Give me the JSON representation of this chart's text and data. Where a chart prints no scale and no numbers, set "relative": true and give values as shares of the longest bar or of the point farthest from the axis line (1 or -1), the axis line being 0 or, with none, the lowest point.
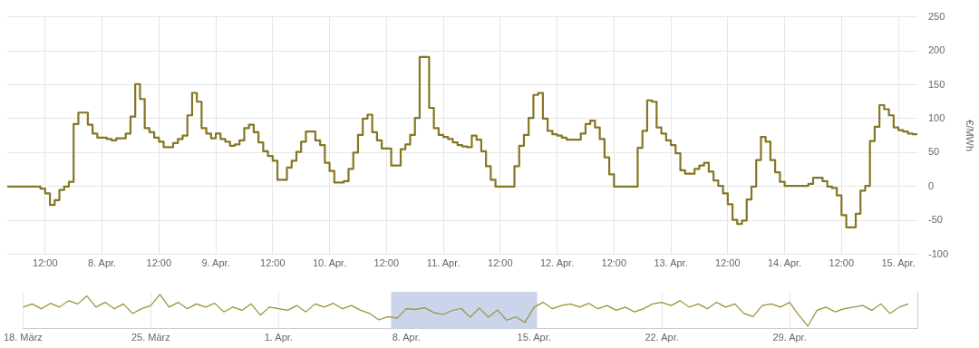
{
  "chart_data": [
    {
      "type": "step",
      "ylabel": "€/MWh",
      "grid": true,
      "legend": false,
      "marker": "none",
      "xlim": [
        "--04-07T04:00",
        "--04-15T04:00"
      ],
      "xticks": [
        {
          "value": "--04-07T12:00",
          "label": "12:00"
        },
        {
          "value": "--04-08",
          "label": "8. Apr."
        },
        {
          "value": "--04-08T12:00",
          "label": "12:00"
        },
        {
          "value": "--04-09",
          "label": "9. Apr."
        },
        {
          "value": "--04-09T12:00",
          "label": "12:00"
        },
        {
          "value": "--04-10",
          "label": "10. Apr."
        },
        {
          "value": "--04-10T12:00",
          "label": "12:00"
        },
        {
          "value": "--04-11",
          "label": "11. Apr."
        },
        {
          "value": "--04-11T12:00",
          "label": "12:00"
        },
        {
          "value": "--04-12",
          "label": "12. Apr."
        },
        {
          "value": "--04-12T12:00",
          "label": "12:00"
        },
        {
          "value": "--04-13",
          "label": "13. Apr."
        },
        {
          "value": "--04-13T12:00",
          "label": "12:00"
        },
        {
          "value": "--04-14",
          "label": "14. Apr."
        },
        {
          "value": "--04-14T12:00",
          "label": "12:00"
        },
        {
          "value": "--04-15",
          "label": "15. Apr."
        }
      ],
      "ylim": [
        -100,
        250
      ],
      "yticks": [
        -100,
        -50,
        0,
        50,
        100,
        150,
        200,
        250
      ],
      "series": [
        {
          "color": "#857624",
          "x": [
            "--04-07T04:00",
            "--04-07T11:00",
            "--04-07T12:00",
            "--04-07T13:00",
            "--04-07T14:00",
            "--04-07T15:00",
            "--04-07T16:00",
            "--04-07T17:00",
            "--04-07T18:00",
            "--04-07T19:00",
            "--04-07T21:00",
            "--04-07T22:00",
            "--04-07T23:00",
            "--04-08T01:00",
            "--04-08T02:00",
            "--04-08T03:00",
            "--04-08T05:00",
            "--04-08T06:00",
            "--04-08T07:00",
            "--04-08T08:00",
            "--04-08T09:00",
            "--04-08T10:00",
            "--04-08T11:00",
            "--04-08T12:00",
            "--04-08T13:00",
            "--04-08T15:00",
            "--04-08T16:00",
            "--04-08T17:00",
            "--04-08T18:00",
            "--04-08T19:00",
            "--04-08T20:00",
            "--04-08T21:00",
            "--04-08T22:00",
            "--04-08T23:00",
            "--04-09T00:00",
            "--04-09T01:00",
            "--04-09T02:00",
            "--04-09T03:00",
            "--04-09T04:00",
            "--04-09T05:00",
            "--04-09T06:00",
            "--04-09T07:00",
            "--04-09T08:00",
            "--04-09T09:00",
            "--04-09T10:00",
            "--04-09T11:00",
            "--04-09T12:00",
            "--04-09T13:00",
            "--04-09T15:00",
            "--04-09T16:00",
            "--04-09T17:00",
            "--04-09T18:00",
            "--04-09T19:00",
            "--04-09T21:00",
            "--04-09T22:00",
            "--04-09T23:00",
            "--04-10T00:00",
            "--04-10T01:00",
            "--04-10T03:00",
            "--04-10T04:00",
            "--04-10T05:00",
            "--04-10T06:00",
            "--04-10T07:00",
            "--04-10T08:00",
            "--04-10T09:00",
            "--04-10T10:00",
            "--04-10T11:00",
            "--04-10T13:00",
            "--04-10T15:00",
            "--04-10T16:00",
            "--04-10T17:00",
            "--04-10T18:00",
            "--04-10T19:00",
            "--04-10T21:00",
            "--04-10T22:00",
            "--04-10T23:00",
            "--04-11T00:00",
            "--04-11T01:00",
            "--04-11T02:00",
            "--04-11T03:00",
            "--04-11T04:00",
            "--04-11T05:00",
            "--04-11T06:00",
            "--04-11T07:00",
            "--04-11T08:00",
            "--04-11T09:00",
            "--04-11T10:00",
            "--04-11T11:00",
            "--04-11T15:00",
            "--04-11T16:00",
            "--04-11T17:00",
            "--04-11T18:00",
            "--04-11T19:00",
            "--04-11T20:00",
            "--04-11T21:00",
            "--04-11T22:00",
            "--04-11T23:00",
            "--04-12T00:00",
            "--04-12T01:00",
            "--04-12T02:00",
            "--04-12T05:00",
            "--04-12T06:00",
            "--04-12T07:00",
            "--04-12T08:00",
            "--04-12T09:00",
            "--04-12T10:00",
            "--04-12T11:00",
            "--04-12T12:00",
            "--04-12T17:00",
            "--04-12T18:00",
            "--04-12T19:00",
            "--04-12T20:00",
            "--04-12T21:00",
            "--04-12T22:00",
            "--04-12T23:00",
            "--04-13T00:00",
            "--04-13T01:00",
            "--04-13T02:00",
            "--04-13T03:00",
            "--04-13T05:00",
            "--04-13T06:00",
            "--04-13T07:00",
            "--04-13T08:00",
            "--04-13T09:00",
            "--04-13T10:00",
            "--04-13T11:00",
            "--04-13T12:00",
            "--04-13T13:00",
            "--04-13T14:00",
            "--04-13T15:00",
            "--04-13T16:00",
            "--04-13T17:00",
            "--04-13T18:00",
            "--04-13T19:00",
            "--04-13T20:00",
            "--04-13T21:00",
            "--04-13T22:00",
            "--04-13T23:00",
            "--04-14T00:00",
            "--04-14T05:00",
            "--04-14T06:00",
            "--04-14T08:00",
            "--04-14T09:00",
            "--04-14T10:00",
            "--04-14T11:00",
            "--04-14T12:00",
            "--04-14T13:00",
            "--04-14T15:00",
            "--04-14T16:00",
            "--04-14T17:00",
            "--04-14T18:00",
            "--04-14T19:00",
            "--04-14T20:00",
            "--04-14T21:00",
            "--04-14T22:00",
            "--04-14T23:00",
            "--04-15T00:00",
            "--04-15T01:00",
            "--04-15T02:00",
            "--04-15T03:00",
            "--04-15T04:00"
          ],
          "values": [
            0,
            -3,
            -10,
            -27,
            -20,
            -5,
            0,
            7,
            92,
            109,
            91,
            78,
            72,
            70,
            68,
            71,
            78,
            103,
            151,
            129,
            86,
            80,
            72,
            66,
            58,
            64,
            70,
            75,
            105,
            138,
            125,
            86,
            78,
            71,
            78,
            70,
            66,
            60,
            62,
            68,
            86,
            91,
            80,
            65,
            52,
            45,
            38,
            10,
            28,
            38,
            51,
            66,
            81,
            68,
            61,
            35,
            23,
            6,
            8,
            26,
            50,
            76,
            100,
            106,
            80,
            68,
            56,
            31,
            55,
            62,
            76,
            101,
            191,
            116,
            86,
            76,
            73,
            70,
            65,
            61,
            59,
            58,
            75,
            69,
            52,
            30,
            10,
            0,
            30,
            60,
            76,
            101,
            135,
            138,
            100,
            82,
            77,
            75,
            72,
            69,
            78,
            92,
            97,
            87,
            70,
            43,
            18,
            0,
            57,
            82,
            127,
            125,
            87,
            78,
            68,
            61,
            49,
            24,
            19,
            26,
            31,
            35,
            22,
            9,
            1,
            -10,
            -26,
            -49,
            -55,
            -50,
            -19,
            0,
            39,
            73,
            66,
            39,
            21,
            7,
            1,
            4,
            13,
            8,
            0,
            -2,
            -13,
            -42,
            -60,
            -40,
            -6,
            1,
            67,
            88,
            120,
            114,
            105,
            87,
            83,
            81,
            78,
            77,
            77
          ]
        }
      ]
    },
    {
      "type": "line",
      "relative": true,
      "grid": "x",
      "legend": false,
      "marker": "none",
      "tick_labels": "x",
      "xlim": [
        "--03-18",
        "--05-06"
      ],
      "xticks": [
        {
          "value": "--03-18",
          "label": "18. März"
        },
        {
          "value": "--03-25",
          "label": "25. März"
        },
        {
          "value": "--04-01",
          "label": "1. Apr."
        },
        {
          "value": "--04-08",
          "label": "8. Apr."
        },
        {
          "value": "--04-15",
          "label": "15. Apr."
        },
        {
          "value": "--04-22",
          "label": "22. Apr."
        },
        {
          "value": "--04-29",
          "label": "29. Apr."
        }
      ],
      "bands": [
        {
          "axis": "x",
          "from": "--04-07T04:00",
          "to": "--04-15T04:00",
          "color": "#cad4ea"
        }
      ],
      "series": [
        {
          "color": "#9c9035",
          "x": [
            "--03-18",
            "--03-18T12:00",
            "--03-19",
            "--03-19T12:00",
            "--03-20",
            "--03-20T12:00",
            "--03-21",
            "--03-21T12:00",
            "--03-22",
            "--03-22T12:00",
            "--03-23",
            "--03-23T12:00",
            "--03-24",
            "--03-24T12:00",
            "--03-25",
            "--03-25T12:00",
            "--03-26",
            "--03-26T12:00",
            "--03-27",
            "--03-27T12:00",
            "--03-28",
            "--03-28T12:00",
            "--03-29",
            "--03-29T12:00",
            "--03-30",
            "--03-30T12:00",
            "--03-31",
            "--03-31T12:00",
            "--04-01",
            "--04-01T12:00",
            "--04-02",
            "--04-02T12:00",
            "--04-03",
            "--04-03T12:00",
            "--04-04",
            "--04-04T12:00",
            "--04-05",
            "--04-05T12:00",
            "--04-06",
            "--04-06T12:00",
            "--04-07",
            "--04-07T12:00",
            "--04-08",
            "--04-08T12:00",
            "--04-09",
            "--04-09T12:00",
            "--04-10",
            "--04-10T12:00",
            "--04-11",
            "--04-11T12:00",
            "--04-12",
            "--04-12T12:00",
            "--04-13",
            "--04-13T12:00",
            "--04-14",
            "--04-14T12:00",
            "--04-15",
            "--04-15T12:00",
            "--04-16",
            "--04-16T12:00",
            "--04-17",
            "--04-17T12:00",
            "--04-18",
            "--04-18T12:00",
            "--04-19",
            "--04-19T12:00",
            "--04-20",
            "--04-20T12:00",
            "--04-21",
            "--04-21T12:00",
            "--04-22",
            "--04-22T12:00",
            "--04-23",
            "--04-23T12:00",
            "--04-24",
            "--04-24T12:00",
            "--04-25",
            "--04-25T12:00",
            "--04-26",
            "--04-26T12:00",
            "--04-27",
            "--04-27T12:00",
            "--04-28",
            "--04-28T12:00",
            "--04-29",
            "--04-29T12:00",
            "--04-30",
            "--04-30T12:00",
            "--05-01",
            "--05-01T12:00",
            "--05-02",
            "--05-02T12:00",
            "--05-03",
            "--05-03T12:00",
            "--05-04",
            "--05-04T12:00",
            "--05-05",
            "--05-05T12:00"
          ],
          "values": [
            0.6,
            0.7,
            0.55,
            0.72,
            0.6,
            0.8,
            0.7,
            0.95,
            0.6,
            0.75,
            0.55,
            0.7,
            0.4,
            0.55,
            0.65,
            1,
            0.6,
            0.75,
            0.55,
            0.7,
            0.6,
            0.72,
            0.45,
            0.6,
            0.5,
            0.7,
            0.35,
            0.6,
            0.55,
            0.5,
            0.65,
            0.45,
            0.7,
            0.6,
            0.72,
            0.55,
            0.65,
            0.5,
            0.4,
            0.2,
            0.3,
            0.25,
            0.55,
            0.53,
            0.58,
            0.43,
            0.37,
            0.49,
            0.56,
            0.28,
            0.57,
            0.28,
            0.51,
            0.19,
            0.29,
            0.12,
            0.6,
            0.75,
            0.55,
            0.65,
            0.7,
            0.6,
            0.72,
            0.55,
            0.65,
            0.5,
            0.6,
            0.45,
            0.55,
            0.7,
            0.75,
            0.65,
            0.8,
            0.6,
            0.7,
            0.55,
            0.75,
            0.6,
            0.7,
            0.4,
            0.3,
            0.65,
            0.7,
            0.6,
            0.75,
            0.35,
            0,
            0.5,
            0.6,
            0.45,
            0.55,
            0.6,
            0.65,
            0.5,
            0.7,
            0.4,
            0.6,
            0.7
          ]
        }
      ]
    }
  ]
}
